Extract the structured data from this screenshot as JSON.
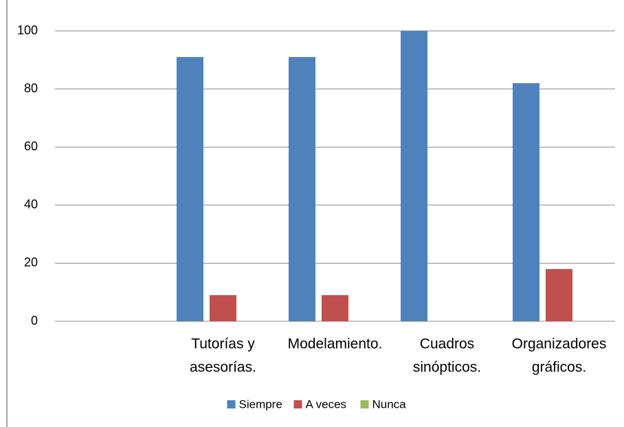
{
  "chart_data": {
    "type": "bar",
    "categories": [
      null,
      [
        "Tutorías y",
        "asesorías."
      ],
      [
        "Modelamiento."
      ],
      [
        "Cuadros",
        "sinópticos."
      ],
      [
        "Organizadores",
        "gráficos."
      ]
    ],
    "series": [
      {
        "name": "Siempre",
        "color": "#4f81bd",
        "values": [
          null,
          91,
          91,
          100,
          82
        ]
      },
      {
        "name": "A veces",
        "color": "#c0504d",
        "values": [
          null,
          9,
          9,
          0,
          18
        ]
      },
      {
        "name": "Nunca",
        "color": "#9bbb59",
        "values": [
          null,
          0,
          0,
          0,
          0
        ]
      }
    ],
    "ylim": [
      0,
      100
    ],
    "yticks": [
      0,
      20,
      40,
      60,
      80,
      100
    ],
    "grid": true,
    "legend": "bottom"
  }
}
